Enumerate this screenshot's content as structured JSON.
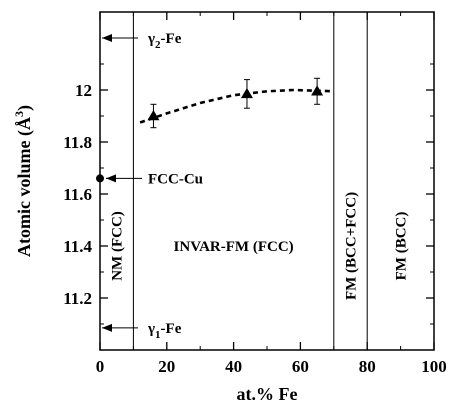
{
  "chart_data": {
    "type": "scatter",
    "title": "",
    "xlabel": "at.% Fe",
    "ylabel_main": "Atomic volume (",
    "ylabel_unit": "Å",
    "ylabel_sup": "3",
    "ylabel_close": ")",
    "xlim": [
      0,
      100
    ],
    "ylim": [
      11.0,
      12.3
    ],
    "x_ticks": [
      0,
      20,
      40,
      60,
      80,
      100
    ],
    "x_tick_labels": [
      "0",
      "20",
      "40",
      "60",
      "80",
      "100"
    ],
    "y_ticks": [
      11.2,
      11.4,
      11.6,
      11.8,
      12.0
    ],
    "y_tick_labels": [
      "11.2",
      "11.4",
      "11.6",
      "11.8",
      "12"
    ],
    "grid": false,
    "series": [
      {
        "marker": "triangle",
        "x": [
          16,
          44,
          65
        ],
        "y": [
          11.9,
          11.985,
          11.995
        ],
        "err_up": [
          0.045,
          0.055,
          0.05
        ],
        "err_down": [
          0.045,
          0.055,
          0.05
        ]
      }
    ],
    "fit_curve": {
      "style": "dashed",
      "x": [
        12,
        20,
        30,
        40,
        50,
        58,
        66,
        70
      ],
      "y": [
        11.875,
        11.91,
        11.95,
        11.98,
        11.995,
        12.0,
        11.997,
        11.995
      ]
    },
    "region_boundaries_x": [
      10,
      70,
      80
    ],
    "region_labels": [
      {
        "text": "NM (FCC)",
        "x": 5,
        "y": 11.4,
        "rotated": true
      },
      {
        "text": "INVAR-FM (FCC)",
        "x": 40,
        "y": 11.4,
        "rotated": false
      },
      {
        "text": "FM (BCC+FCC)",
        "x": 75,
        "y": 11.4,
        "rotated": true
      },
      {
        "text": "FM (BCC)",
        "x": 90,
        "y": 11.4,
        "rotated": true
      }
    ],
    "reference_markers": [
      {
        "label_base": "γ",
        "label_sub": "2",
        "label_rest": "-Fe",
        "y": 12.2,
        "marker": "arrow"
      },
      {
        "label_base": "FCC-Cu",
        "label_sub": "",
        "label_rest": "",
        "y": 11.66,
        "marker": "dot"
      },
      {
        "label_base": "γ",
        "label_sub": "1",
        "label_rest": "-Fe",
        "y": 11.085,
        "marker": "arrow"
      }
    ]
  }
}
